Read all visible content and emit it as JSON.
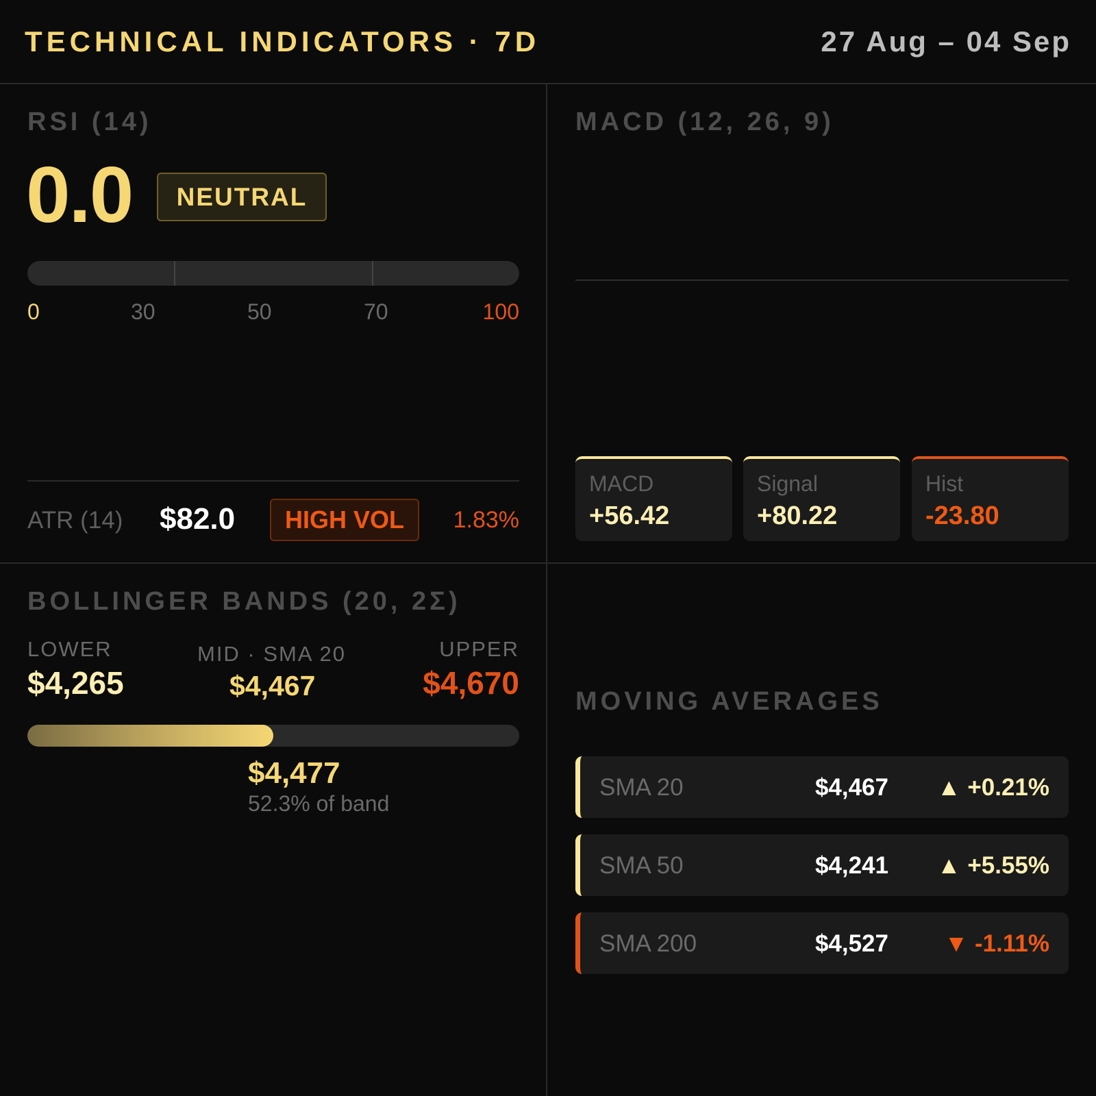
{
  "header": {
    "title": "TECHNICAL INDICATORS · 7D",
    "date_range": "27 Aug – 04 Sep"
  },
  "rsi": {
    "label": "RSI (14)",
    "value": "0.0",
    "status": "NEUTRAL",
    "scale_labels": [
      "0",
      "30",
      "50",
      "70",
      "100"
    ]
  },
  "atr": {
    "label": "ATR (14)",
    "value": "$82.0",
    "badge": "HIGH VOL",
    "percent": "1.83%"
  },
  "macd": {
    "label": "MACD (12, 26, 9)",
    "cards": [
      {
        "label": "MACD",
        "value": "+56.42"
      },
      {
        "label": "Signal",
        "value": "+80.22"
      },
      {
        "label": "Hist",
        "value": "-23.80"
      }
    ]
  },
  "bollinger": {
    "label": "BOLLINGER BANDS (20, 2Σ)",
    "lower_label": "LOWER",
    "lower_value": "$4,265",
    "mid_label": "MID · SMA 20",
    "mid_value": "$4,467",
    "upper_label": "UPPER",
    "upper_value": "$4,670",
    "price": "$4,477",
    "band_position": "52.3% of band",
    "band_fraction": 0.5
  },
  "moving_averages": {
    "label": "MOVING AVERAGES",
    "rows": [
      {
        "name": "SMA 20",
        "price": "$4,467",
        "change": "▲ +0.21%",
        "direction": "up"
      },
      {
        "name": "SMA 50",
        "price": "$4,241",
        "change": "▲ +5.55%",
        "direction": "up"
      },
      {
        "name": "SMA 200",
        "price": "$4,527",
        "change": "▼ -1.11%",
        "direction": "down"
      }
    ]
  },
  "colors": {
    "accent": "#f5d774",
    "positive": "#fbefb4",
    "negative": "#e2521a",
    "background": "#0b0b0b"
  }
}
